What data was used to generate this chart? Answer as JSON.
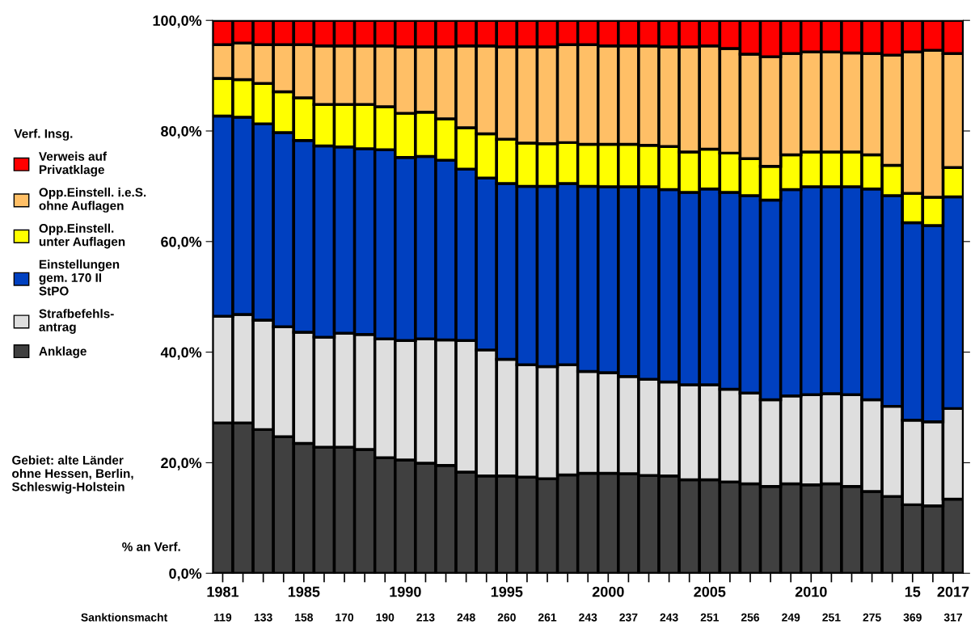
{
  "chart_data": {
    "type": "bar",
    "stacked": true,
    "legend": "left",
    "legend_title": "Verf. Insg.",
    "categories": [
      "1981",
      null,
      null,
      null,
      "1985",
      null,
      null,
      null,
      null,
      "1990",
      null,
      null,
      null,
      null,
      "1995",
      null,
      null,
      null,
      null,
      "2000",
      null,
      null,
      null,
      null,
      "2005",
      null,
      null,
      null,
      null,
      "2010",
      null,
      null,
      null,
      null,
      "15",
      null,
      "2017"
    ],
    "ylim": [
      0,
      100
    ],
    "yticks": [
      {
        "value": 0,
        "label": "0,0%"
      },
      {
        "value": 20,
        "label": "20,0%"
      },
      {
        "value": 40,
        "label": "40,0%"
      },
      {
        "value": 60,
        "label": "60,0%"
      },
      {
        "value": 80,
        "label": "80,0%"
      },
      {
        "value": 100,
        "label": "100,0%"
      }
    ],
    "series": [
      {
        "name": "Anklage",
        "color": "#404040",
        "values": [
          27.2,
          27.2,
          26.0,
          24.7,
          23.5,
          22.8,
          22.8,
          22.4,
          20.9,
          20.5,
          19.9,
          19.5,
          18.3,
          17.6,
          17.6,
          17.4,
          17.1,
          17.8,
          18.1,
          18.1,
          18.0,
          17.7,
          17.6,
          16.9,
          16.9,
          16.5,
          16.2,
          15.7,
          16.2,
          16.0,
          16.2,
          15.7,
          14.8,
          13.9,
          12.4,
          12.2,
          13.4
        ]
      },
      {
        "name": "Strafbefehls-\nantrag",
        "color": "#dedede",
        "values": [
          19.3,
          19.6,
          19.8,
          19.9,
          20.1,
          19.9,
          20.6,
          20.8,
          21.5,
          21.6,
          22.5,
          22.7,
          23.8,
          22.8,
          21.1,
          20.3,
          20.3,
          19.9,
          18.4,
          18.2,
          17.6,
          17.4,
          17.0,
          17.2,
          17.2,
          16.8,
          16.4,
          15.7,
          15.9,
          16.3,
          16.3,
          16.6,
          16.6,
          16.3,
          15.3,
          15.2,
          16.4
        ]
      },
      {
        "name": "Einstellungen\ngem. 170 II\nStPO",
        "color": "#0040c0",
        "values": [
          36.2,
          35.7,
          35.5,
          35.1,
          34.7,
          34.6,
          33.7,
          33.6,
          34.2,
          33.1,
          33.0,
          32.5,
          31.0,
          31.1,
          31.8,
          32.3,
          32.6,
          32.8,
          33.5,
          33.6,
          34.3,
          34.8,
          34.8,
          34.8,
          35.4,
          35.6,
          35.7,
          36.1,
          37.3,
          37.6,
          37.4,
          37.6,
          38.1,
          38.1,
          35.7,
          35.5,
          38.3
        ]
      },
      {
        "name": "Opp.Einstell.\nunter Auflagen",
        "color": "#ffff00",
        "values": [
          6.8,
          6.8,
          7.3,
          7.4,
          7.7,
          7.5,
          7.7,
          8.0,
          7.8,
          8.0,
          8.0,
          7.5,
          7.5,
          8.0,
          8.0,
          7.8,
          7.7,
          7.4,
          7.6,
          7.7,
          7.7,
          7.5,
          7.8,
          7.3,
          7.2,
          7.1,
          6.7,
          6.1,
          6.3,
          6.3,
          6.3,
          6.3,
          6.2,
          5.5,
          5.3,
          5.1,
          5.3
        ]
      },
      {
        "name": "Opp.Einstell. i.e.S.\nohne Auflagen",
        "color": "#ffbf66",
        "values": [
          6.1,
          6.6,
          7.0,
          8.5,
          9.6,
          10.6,
          10.6,
          10.6,
          11.0,
          12.0,
          11.8,
          13.0,
          14.8,
          15.9,
          16.7,
          17.4,
          17.5,
          17.7,
          18.0,
          17.8,
          17.8,
          18.0,
          18.0,
          19.0,
          18.7,
          18.9,
          18.9,
          19.8,
          18.3,
          18.1,
          18.1,
          17.9,
          18.3,
          19.9,
          25.6,
          26.6,
          20.6
        ]
      },
      {
        "name": "Verweis auf\nPrivatklage",
        "color": "#ff0000",
        "values": [
          4.4,
          4.1,
          4.4,
          4.4,
          4.4,
          4.6,
          4.6,
          4.6,
          4.6,
          4.8,
          4.8,
          4.8,
          4.6,
          4.6,
          4.8,
          4.8,
          4.8,
          4.4,
          4.4,
          4.6,
          4.6,
          4.6,
          4.8,
          4.8,
          4.6,
          5.1,
          6.1,
          6.6,
          6.0,
          5.7,
          5.7,
          5.9,
          6.0,
          6.3,
          5.7,
          5.4,
          6.0
        ]
      }
    ],
    "annotations": [
      "Gebiet: alte Länder\nohne Hessen, Berlin,\nSchleswig-Holstein",
      "% an Verf.",
      "Sanktionsmacht",
      "119",
      "133",
      "158",
      "170",
      "190",
      "213",
      "248",
      "260",
      "261",
      "243",
      "237",
      "243",
      "251",
      "256",
      "249",
      "251",
      "275",
      "369",
      "317"
    ]
  }
}
